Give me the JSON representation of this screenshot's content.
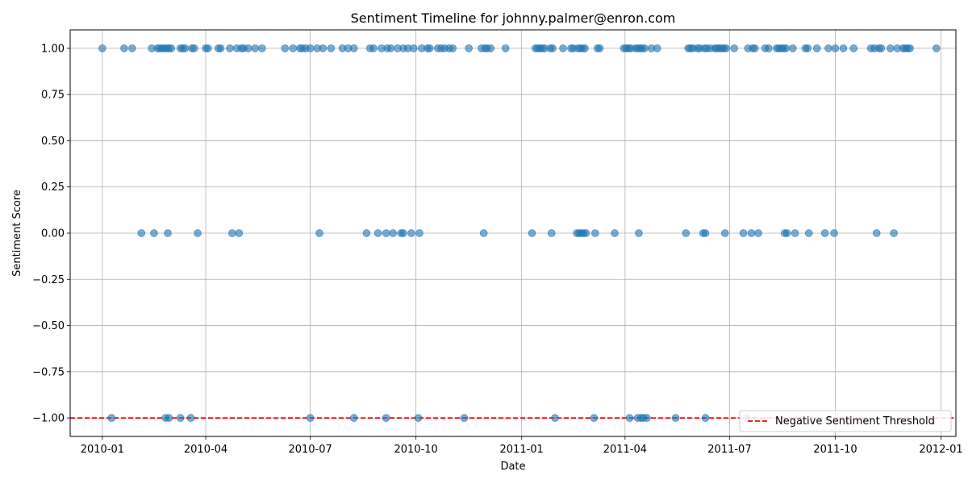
{
  "chart_data": {
    "type": "scatter",
    "title": "Sentiment Timeline for johnny.palmer@enron.com",
    "xlabel": "Date",
    "ylabel": "Sentiment Score",
    "xlim": [
      "2009-12-04",
      "2012-01-14"
    ],
    "ylim": [
      -1.1,
      1.1
    ],
    "x_ticks": [
      "2010-01",
      "2010-04",
      "2010-07",
      "2010-10",
      "2011-01",
      "2011-04",
      "2011-07",
      "2011-10",
      "2012-01"
    ],
    "x_tick_dates": [
      "2010-01-01",
      "2010-04-01",
      "2010-07-01",
      "2010-10-01",
      "2011-01-01",
      "2011-04-01",
      "2011-07-01",
      "2011-10-01",
      "2012-01-01"
    ],
    "y_ticks": [
      1.0,
      0.75,
      0.5,
      0.25,
      0.0,
      -0.25,
      -0.5,
      -0.75,
      -1.0
    ],
    "y_tick_labels": [
      "1.00",
      "0.75",
      "0.50",
      "0.25",
      "0.00",
      "−0.25",
      "−0.50",
      "−0.75",
      "−1.00"
    ],
    "grid": true,
    "legend_position": "lower-right",
    "marker_color": "#1f77b4",
    "threshold": {
      "label": "Negative Sentiment Threshold",
      "value": -1.0,
      "color": "#ff0000",
      "style": "dashed"
    },
    "series": [
      {
        "score": 1,
        "dates": [
          "2010-01-01",
          "2010-01-20",
          "2010-01-27",
          "2010-02-13",
          "2010-02-18",
          "2010-02-20",
          "2010-02-22",
          "2010-02-24",
          "2010-02-26",
          "2010-02-28",
          "2010-03-02",
          "2010-03-10",
          "2010-03-12",
          "2010-03-14",
          "2010-03-20",
          "2010-03-22",
          "2010-04-01",
          "2010-04-03",
          "2010-04-12",
          "2010-04-14",
          "2010-04-22",
          "2010-04-28",
          "2010-05-02",
          "2010-05-04",
          "2010-05-08",
          "2010-05-14",
          "2010-05-20",
          "2010-06-09",
          "2010-06-16",
          "2010-06-22",
          "2010-06-24",
          "2010-06-27",
          "2010-07-01",
          "2010-07-07",
          "2010-07-12",
          "2010-07-19",
          "2010-07-29",
          "2010-08-03",
          "2010-08-08",
          "2010-08-22",
          "2010-08-25",
          "2010-09-01",
          "2010-09-06",
          "2010-09-09",
          "2010-09-15",
          "2010-09-20",
          "2010-09-24",
          "2010-09-29",
          "2010-10-06",
          "2010-10-11",
          "2010-10-13",
          "2010-10-20",
          "2010-10-23",
          "2010-10-26",
          "2010-10-30",
          "2010-11-02",
          "2010-11-16",
          "2010-11-27",
          "2010-11-30",
          "2010-12-02",
          "2010-12-05",
          "2010-12-18",
          "2011-01-13",
          "2011-01-15",
          "2011-01-17",
          "2011-01-19",
          "2011-01-21",
          "2011-01-26",
          "2011-01-28",
          "2011-02-06",
          "2011-02-13",
          "2011-02-15",
          "2011-02-19",
          "2011-02-21",
          "2011-02-23",
          "2011-02-25",
          "2011-03-08",
          "2011-03-10",
          "2011-03-31",
          "2011-04-02",
          "2011-04-04",
          "2011-04-06",
          "2011-04-10",
          "2011-04-12",
          "2011-04-14",
          "2011-04-16",
          "2011-04-18",
          "2011-04-24",
          "2011-04-29",
          "2011-05-26",
          "2011-05-28",
          "2011-05-30",
          "2011-06-03",
          "2011-06-05",
          "2011-06-09",
          "2011-06-11",
          "2011-06-14",
          "2011-06-18",
          "2011-06-20",
          "2011-06-22",
          "2011-06-24",
          "2011-06-26",
          "2011-06-28",
          "2011-07-05",
          "2011-07-17",
          "2011-07-21",
          "2011-07-23",
          "2011-08-01",
          "2011-08-04",
          "2011-08-11",
          "2011-08-13",
          "2011-08-15",
          "2011-08-17",
          "2011-08-19",
          "2011-08-25",
          "2011-09-05",
          "2011-09-07",
          "2011-09-15",
          "2011-09-25",
          "2011-10-01",
          "2011-10-08",
          "2011-10-17",
          "2011-11-01",
          "2011-11-04",
          "2011-11-08",
          "2011-11-10",
          "2011-11-18",
          "2011-11-24",
          "2011-11-29",
          "2011-12-01",
          "2011-12-03",
          "2011-12-05",
          "2011-12-28"
        ]
      },
      {
        "score": 0,
        "dates": [
          "2010-02-04",
          "2010-02-15",
          "2010-02-27",
          "2010-03-25",
          "2010-04-24",
          "2010-04-30",
          "2010-07-09",
          "2010-08-19",
          "2010-08-29",
          "2010-09-05",
          "2010-09-11",
          "2010-09-18",
          "2010-09-20",
          "2010-09-27",
          "2010-10-04",
          "2010-11-29",
          "2011-01-10",
          "2011-01-27",
          "2011-02-18",
          "2011-02-20",
          "2011-02-22",
          "2011-02-24",
          "2011-02-26",
          "2011-03-06",
          "2011-03-23",
          "2011-04-13",
          "2011-05-24",
          "2011-06-08",
          "2011-06-10",
          "2011-06-27",
          "2011-07-13",
          "2011-07-20",
          "2011-07-26",
          "2011-08-18",
          "2011-08-20",
          "2011-08-27",
          "2011-09-08",
          "2011-09-22",
          "2011-09-30",
          "2011-11-06",
          "2011-11-21"
        ]
      },
      {
        "score": -1,
        "dates": [
          "2010-01-09",
          "2010-02-25",
          "2010-02-28",
          "2010-03-10",
          "2010-03-19",
          "2010-07-01",
          "2010-08-08",
          "2010-09-05",
          "2010-10-03",
          "2010-11-12",
          "2011-01-30",
          "2011-03-05",
          "2011-04-05",
          "2011-04-12",
          "2011-04-15",
          "2011-04-17",
          "2011-04-20",
          "2011-05-15",
          "2011-06-10",
          "2011-07-16"
        ]
      }
    ]
  }
}
